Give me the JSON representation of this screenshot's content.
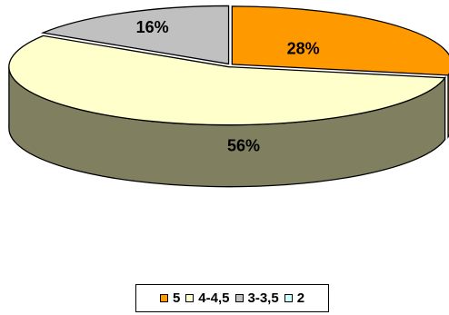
{
  "chart_data": {
    "type": "pie",
    "title": "",
    "style": "3d-exploded",
    "series": [
      {
        "label": "5",
        "value": 28,
        "data_label": "28%",
        "color": "#ff9900",
        "side_color": "#a86600"
      },
      {
        "label": "4-4,5",
        "value": 56,
        "data_label": "56%",
        "color": "#ffffcc",
        "side_color": "#808060"
      },
      {
        "label": "3-3,5",
        "value": 16,
        "data_label": "16%",
        "color": "#c0c0c0",
        "side_color": "#7a7a7a"
      },
      {
        "label": "2",
        "value": 0,
        "data_label": "",
        "color": "#ccffff",
        "side_color": "#88aaaa"
      }
    ],
    "legend": {
      "position": "bottom"
    }
  }
}
